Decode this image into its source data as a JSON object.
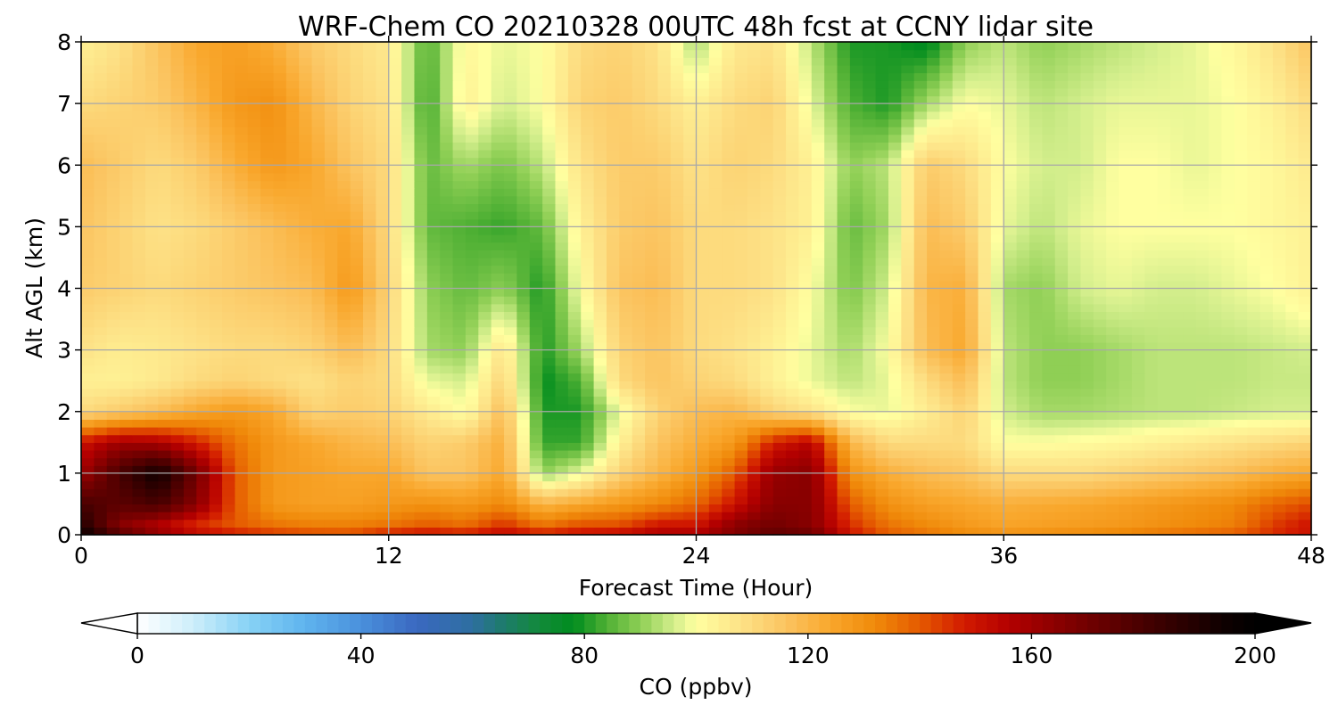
{
  "chart_data": {
    "type": "heatmap",
    "title": "WRF-Chem CO  20210328 00UTC 48h fcst at CCNY lidar site",
    "xlabel": "Forecast Time (Hour)",
    "ylabel": "Alt AGL (km)",
    "xlim": [
      0,
      48
    ],
    "ylim": [
      0,
      8
    ],
    "xticks": [
      0,
      12,
      24,
      36,
      48
    ],
    "yticks": [
      0,
      1,
      2,
      3,
      4,
      5,
      6,
      7,
      8
    ],
    "grid": true,
    "colorbar": {
      "label": "CO  (ppbv)",
      "min": 0,
      "max": 200,
      "ticks": [
        0,
        40,
        80,
        120,
        160,
        200
      ],
      "extend": "both",
      "stops": [
        {
          "v": 0,
          "color": "#ffffff"
        },
        {
          "v": 10,
          "color": "#cdeefb"
        },
        {
          "v": 20,
          "color": "#87d2f5"
        },
        {
          "v": 30,
          "color": "#5fb4ee"
        },
        {
          "v": 40,
          "color": "#4a90dc"
        },
        {
          "v": 50,
          "color": "#3a68c0"
        },
        {
          "v": 60,
          "color": "#2e6fa0"
        },
        {
          "v": 65,
          "color": "#1f7a70"
        },
        {
          "v": 72,
          "color": "#128a3a"
        },
        {
          "v": 78,
          "color": "#008c1e"
        },
        {
          "v": 84,
          "color": "#4fb034"
        },
        {
          "v": 90,
          "color": "#8fcf55"
        },
        {
          "v": 96,
          "color": "#d3ee8c"
        },
        {
          "v": 100,
          "color": "#ffffa0"
        },
        {
          "v": 108,
          "color": "#fde287"
        },
        {
          "v": 116,
          "color": "#fbc460"
        },
        {
          "v": 124,
          "color": "#f9a72c"
        },
        {
          "v": 132,
          "color": "#f08a0a"
        },
        {
          "v": 140,
          "color": "#e55a00"
        },
        {
          "v": 148,
          "color": "#d21a00"
        },
        {
          "v": 156,
          "color": "#b30000"
        },
        {
          "v": 168,
          "color": "#7a0000"
        },
        {
          "v": 182,
          "color": "#3f0000"
        },
        {
          "v": 194,
          "color": "#100000"
        },
        {
          "v": 200,
          "color": "#000000"
        }
      ]
    },
    "grid_data": {
      "x": [
        0,
        1.5,
        3,
        4.5,
        6,
        7.5,
        9,
        10.5,
        12,
        13.5,
        15,
        16.5,
        18,
        19.5,
        21,
        22.5,
        24,
        25.5,
        27,
        28.5,
        30,
        31.5,
        33,
        34.5,
        36,
        37.5,
        39,
        40.5,
        42,
        43.5,
        45,
        46.5,
        48
      ],
      "y": [
        0,
        0.15,
        0.5,
        1,
        1.5,
        2,
        2.5,
        3,
        4,
        5,
        6,
        7,
        8
      ],
      "z": [
        [
          198,
          178,
          165,
          155,
          150,
          146,
          144,
          143,
          150,
          152,
          150,
          154,
          150,
          152,
          154,
          158,
          158,
          166,
          175,
          172,
          150,
          140,
          136,
          132,
          130,
          131,
          132,
          134,
          136,
          138,
          140,
          146,
          150
        ],
        [
          190,
          165,
          155,
          145,
          140,
          136,
          134,
          134,
          136,
          140,
          137,
          146,
          136,
          142,
          142,
          150,
          150,
          165,
          170,
          165,
          146,
          136,
          132,
          128,
          125,
          126,
          127,
          128,
          130,
          132,
          134,
          144,
          150
        ],
        [
          180,
          175,
          180,
          165,
          140,
          128,
          126,
          126,
          128,
          130,
          128,
          132,
          120,
          124,
          128,
          132,
          138,
          150,
          165,
          165,
          140,
          130,
          126,
          124,
          122,
          123,
          124,
          126,
          128,
          130,
          132,
          138,
          142
        ],
        [
          160,
          180,
          195,
          170,
          140,
          128,
          126,
          124,
          124,
          116,
          116,
          124,
          90,
          98,
          112,
          120,
          128,
          140,
          162,
          165,
          130,
          122,
          118,
          116,
          110,
          110,
          110,
          112,
          114,
          116,
          118,
          122,
          124
        ],
        [
          150,
          160,
          158,
          148,
          136,
          128,
          124,
          120,
          118,
          112,
          114,
          122,
          82,
          82,
          104,
          116,
          122,
          128,
          148,
          155,
          120,
          110,
          110,
          110,
          100,
          100,
          101,
          102,
          104,
          106,
          108,
          110,
          112
        ],
        [
          110,
          114,
          118,
          124,
          128,
          124,
          112,
          114,
          112,
          106,
          100,
          118,
          80,
          80,
          98,
          112,
          118,
          120,
          112,
          108,
          100,
          98,
          105,
          112,
          96,
          92,
          92,
          93,
          94,
          94,
          95,
          96,
          96
        ],
        [
          104,
          104,
          106,
          110,
          112,
          110,
          108,
          112,
          110,
          98,
          96,
          112,
          78,
          84,
          110,
          116,
          112,
          110,
          104,
          98,
          94,
          98,
          110,
          118,
          94,
          90,
          90,
          92,
          94,
          94,
          94,
          95,
          95
        ],
        [
          108,
          105,
          106,
          108,
          110,
          110,
          112,
          118,
          110,
          92,
          90,
          108,
          80,
          92,
          112,
          116,
          110,
          108,
          104,
          98,
          92,
          100,
          118,
          124,
          94,
          90,
          90,
          92,
          94,
          94,
          94,
          95,
          96
        ],
        [
          114,
          112,
          110,
          112,
          114,
          116,
          118,
          128,
          112,
          90,
          86,
          90,
          80,
          100,
          116,
          118,
          110,
          110,
          108,
          100,
          88,
          96,
          120,
          122,
          92,
          90,
          96,
          98,
          96,
          96,
          98,
          100,
          104
        ],
        [
          116,
          112,
          108,
          110,
          114,
          118,
          122,
          124,
          110,
          86,
          84,
          82,
          86,
          104,
          114,
          116,
          110,
          110,
          108,
          104,
          86,
          92,
          118,
          114,
          98,
          94,
          98,
          100,
          100,
          100,
          100,
          102,
          104
        ],
        [
          118,
          114,
          110,
          114,
          122,
          128,
          124,
          116,
          110,
          86,
          92,
          88,
          94,
          108,
          114,
          114,
          108,
          112,
          110,
          104,
          90,
          94,
          114,
          110,
          100,
          96,
          96,
          100,
          100,
          98,
          100,
          102,
          106
        ],
        [
          110,
          112,
          114,
          120,
          128,
          130,
          120,
          112,
          108,
          82,
          104,
          96,
          100,
          112,
          114,
          110,
          104,
          110,
          112,
          98,
          84,
          80,
          92,
          100,
          98,
          94,
          96,
          98,
          98,
          98,
          100,
          104,
          110
        ],
        [
          104,
          108,
          116,
          124,
          126,
          122,
          114,
          110,
          106,
          84,
          102,
          98,
          100,
          110,
          112,
          108,
          92,
          106,
          108,
          94,
          80,
          80,
          76,
          90,
          94,
          90,
          92,
          94,
          96,
          98,
          102,
          108,
          116
        ]
      ]
    }
  }
}
